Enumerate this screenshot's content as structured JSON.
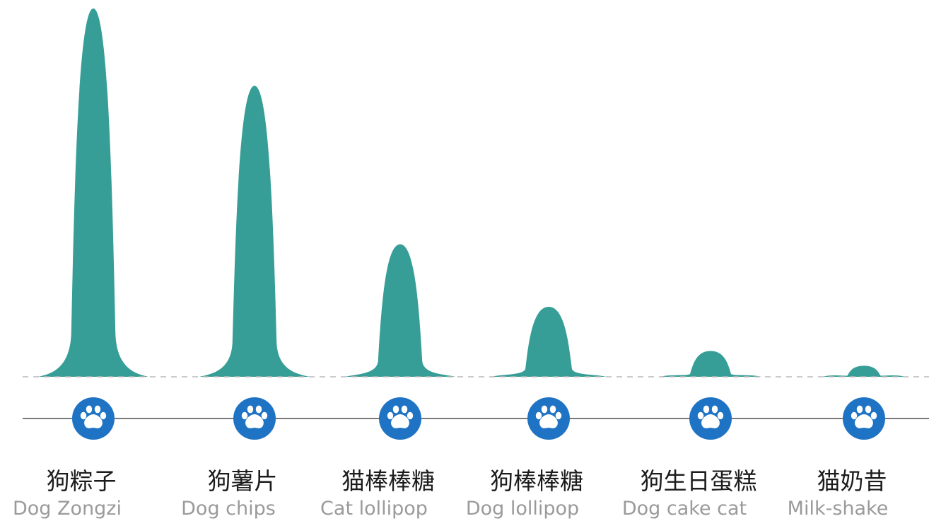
{
  "chart_data": {
    "type": "area",
    "categories": [
      {
        "zh": "狗粽子",
        "en": "Dog Zongzi"
      },
      {
        "zh": "狗薯片",
        "en": "Dog chips"
      },
      {
        "zh": "猫棒棒糖",
        "en": "Cat lollipop"
      },
      {
        "zh": "狗棒棒糖",
        "en": "Dog lollipop"
      },
      {
        "zh": "狗生日蛋糕",
        "en": "Dog cake cat"
      },
      {
        "zh": "猫奶昔",
        "en": "Milk-shake"
      }
    ],
    "values": [
      100,
      79,
      36,
      19,
      7,
      3
    ],
    "peak_color": "#369e97",
    "marker_color": "#1f73c4",
    "marker_icon": "paw-icon",
    "baseline_style": "dashed",
    "axis_line_color": "#7a7a7a",
    "gridlines": false,
    "legend": "none"
  }
}
